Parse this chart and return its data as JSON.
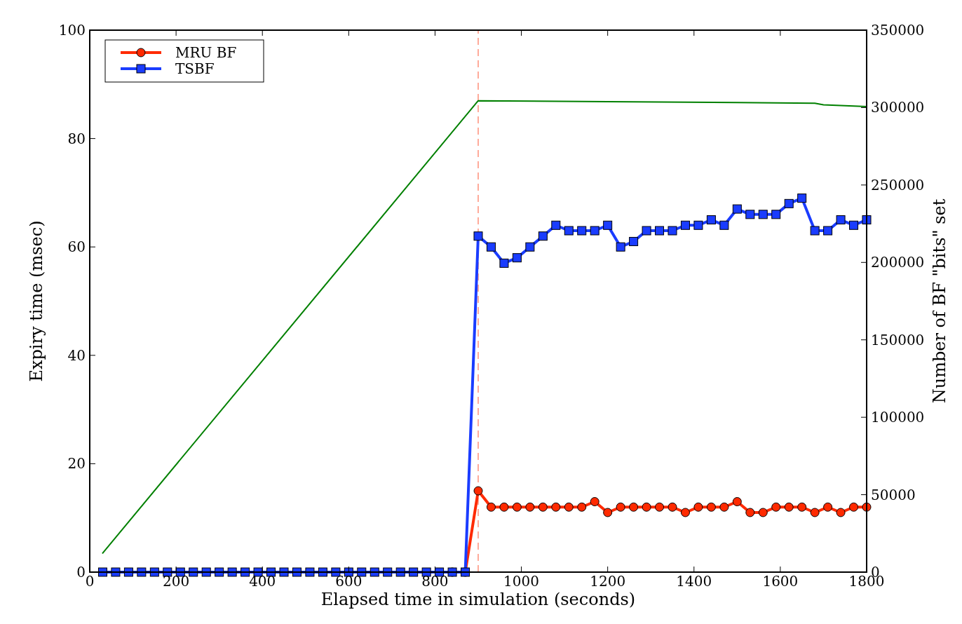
{
  "chart_data": {
    "type": "line",
    "xlabel": "Elapsed time in simulation (seconds)",
    "ylabel": "Expiry time (msec)",
    "y2label": "Number of BF \"bits\" set",
    "xlim": [
      0,
      1800
    ],
    "xticks": [
      0,
      200,
      400,
      600,
      800,
      1000,
      1200,
      1400,
      1600,
      1800
    ],
    "ylim": [
      0,
      100
    ],
    "yticks": [
      0,
      20,
      40,
      60,
      80,
      100
    ],
    "y2lim": [
      0,
      350000
    ],
    "y2ticks": [
      0,
      50000,
      100000,
      150000,
      200000,
      250000,
      300000,
      350000
    ],
    "legend": "top left",
    "grid": false,
    "ref_lines": [
      {
        "axis": "x",
        "value": 900,
        "color": "#ff7f66",
        "line_style": "dashed"
      }
    ],
    "series": [
      {
        "name": "MRU BF",
        "color": "#ff2a00",
        "marker": "circle",
        "x": [
          840,
          870,
          900,
          930,
          960,
          990,
          1020,
          1050,
          1080,
          1110,
          1140,
          1170,
          1200,
          1230,
          1260,
          1290,
          1320,
          1350,
          1380,
          1410,
          1440,
          1470,
          1500,
          1530,
          1560,
          1590,
          1620,
          1650,
          1680,
          1710,
          1740,
          1770,
          1800
        ],
        "values": [
          0,
          0,
          15,
          12,
          12,
          12,
          12,
          12,
          12,
          12,
          12,
          13,
          11,
          12,
          12,
          12,
          12,
          12,
          11,
          12,
          12,
          12,
          13,
          11,
          11,
          12,
          12,
          12,
          11,
          12,
          11,
          12,
          12
        ]
      },
      {
        "name": "TSBF",
        "color": "#1a3cff",
        "marker": "square",
        "x": [
          30,
          60,
          90,
          120,
          150,
          180,
          210,
          240,
          270,
          300,
          330,
          360,
          390,
          420,
          450,
          480,
          510,
          540,
          570,
          600,
          630,
          660,
          690,
          720,
          750,
          780,
          810,
          840,
          870,
          900,
          930,
          960,
          990,
          1020,
          1050,
          1080,
          1110,
          1140,
          1170,
          1200,
          1230,
          1260,
          1290,
          1320,
          1350,
          1380,
          1410,
          1440,
          1470,
          1500,
          1530,
          1560,
          1590,
          1620,
          1650,
          1680,
          1710,
          1740,
          1770,
          1800
        ],
        "values": [
          0,
          0,
          0,
          0,
          0,
          0,
          0,
          0,
          0,
          0,
          0,
          0,
          0,
          0,
          0,
          0,
          0,
          0,
          0,
          0,
          0,
          0,
          0,
          0,
          0,
          0,
          0,
          0,
          0,
          62,
          60,
          57,
          58,
          60,
          62,
          64,
          63,
          63,
          63,
          64,
          60,
          61,
          63,
          63,
          63,
          64,
          64,
          65,
          64,
          67,
          66,
          66,
          66,
          68,
          69,
          63,
          63,
          65,
          64,
          65
        ]
      },
      {
        "color": "#008000",
        "axis": "y2",
        "marker": "none",
        "x": [
          30,
          900,
          1200,
          1500,
          1680,
          1700,
          1800
        ],
        "values": [
          12300,
          304400,
          303800,
          303300,
          302800,
          301800,
          300700
        ]
      }
    ]
  }
}
